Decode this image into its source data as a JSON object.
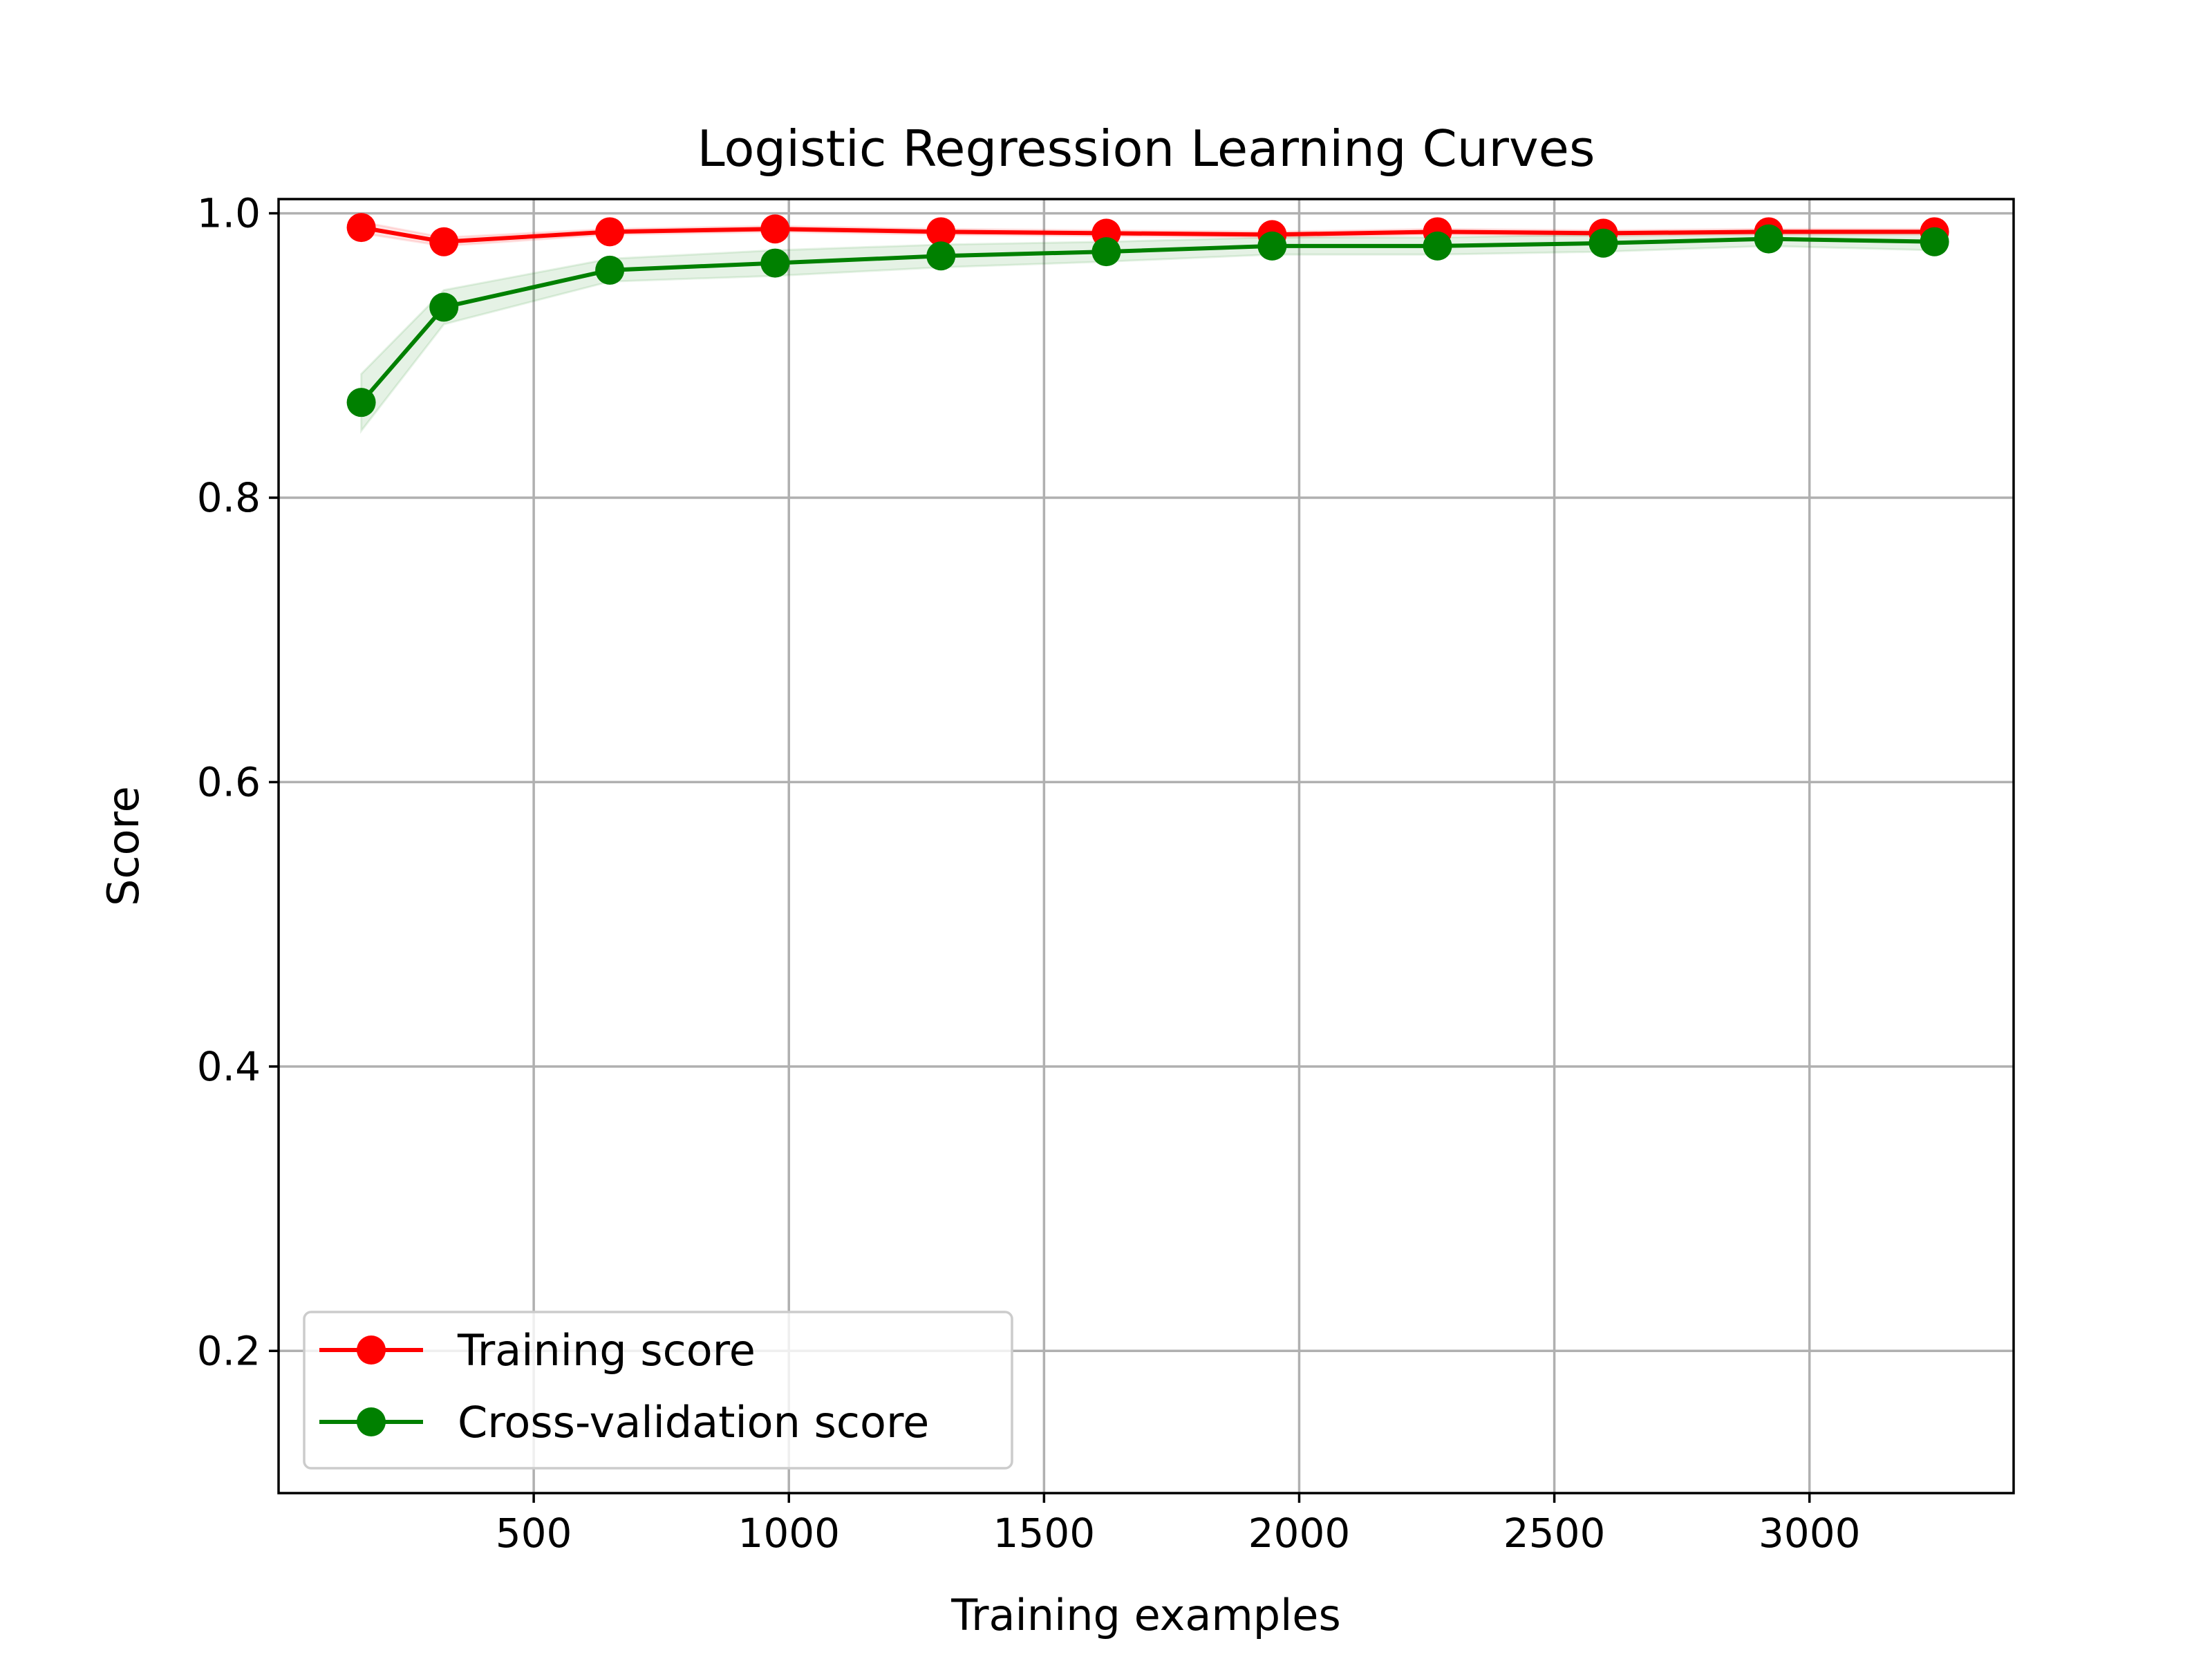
{
  "chart_data": {
    "type": "line",
    "title": "Logistic Regression Learning Curves",
    "xlabel": "Training examples",
    "ylabel": "Score",
    "xlim": [
      0,
      3400
    ],
    "ylim": [
      0.1,
      1.01
    ],
    "xticks": [
      500,
      1000,
      1500,
      2000,
      2500,
      3000
    ],
    "xtick_labels": [
      "500",
      "1000",
      "1500",
      "2000",
      "2500",
      "3000"
    ],
    "yticks": [
      0.2,
      0.4,
      0.6,
      0.8,
      1.0
    ],
    "ytick_labels": [
      "0.2",
      "0.4",
      "0.6",
      "0.8",
      "1.0"
    ],
    "grid": true,
    "legend_position": "lower-left",
    "x": [
      162,
      324,
      649,
      973,
      1298,
      1622,
      1947,
      2271,
      2596,
      2920,
      3245
    ],
    "series": [
      {
        "name": "Training score",
        "color": "#ff0000",
        "values": [
          0.99,
          0.98,
          0.987,
          0.989,
          0.987,
          0.986,
          0.985,
          0.987,
          0.986,
          0.987,
          0.987
        ],
        "std": [
          0.004,
          0.003,
          0.002,
          0.002,
          0.002,
          0.002,
          0.002,
          0.002,
          0.002,
          0.002,
          0.002
        ]
      },
      {
        "name": "Cross-validation score",
        "color": "#008000",
        "values": [
          0.867,
          0.934,
          0.96,
          0.965,
          0.97,
          0.973,
          0.977,
          0.977,
          0.979,
          0.982,
          0.98
        ],
        "std": [
          0.02,
          0.012,
          0.008,
          0.009,
          0.008,
          0.007,
          0.006,
          0.006,
          0.006,
          0.005,
          0.006
        ]
      }
    ]
  }
}
